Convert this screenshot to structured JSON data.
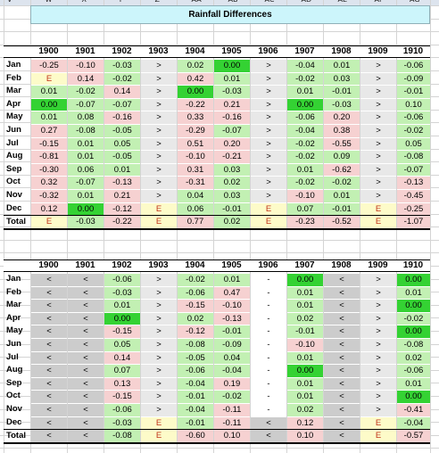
{
  "column_letters": [
    "V",
    "W",
    "X",
    "Y",
    "Z",
    "AA",
    "AB",
    "AC",
    "AD",
    "AE",
    "AF",
    "AG"
  ],
  "title": "Rainfall Differences",
  "years": [
    "1900",
    "1901",
    "1902",
    "1903",
    "1904",
    "1905",
    "1906",
    "1907",
    "1908",
    "1909",
    "1910"
  ],
  "months": [
    "Jan",
    "Feb",
    "Mar",
    "Apr",
    "May",
    "Jun",
    "Jul",
    "Aug",
    "Sep",
    "Oct",
    "Nov",
    "Dec"
  ],
  "total_label": "Total",
  "legend_colors": {
    "green": "#c2f0b3",
    "pink": "#f6d1d1",
    "bright_green": "#34d233",
    "yellow": "#fdfbc9",
    "gray": "#cccccc",
    "light_gray": "#e8e8e8"
  },
  "table1": {
    "rows": [
      [
        [
          "-0.25",
          "p"
        ],
        [
          "-0.10",
          "p"
        ],
        [
          "-0.03",
          "g"
        ],
        [
          ">",
          "l"
        ],
        [
          "0.02",
          "g"
        ],
        [
          "0.00",
          "b"
        ],
        [
          ">",
          "l"
        ],
        [
          "-0.04",
          "g"
        ],
        [
          "0.01",
          "g"
        ],
        [
          ">",
          "l"
        ],
        [
          "-0.06",
          "g"
        ]
      ],
      [
        [
          "E",
          "y"
        ],
        [
          "0.14",
          "p"
        ],
        [
          "-0.02",
          "g"
        ],
        [
          ">",
          "l"
        ],
        [
          "0.42",
          "p"
        ],
        [
          "0.01",
          "g"
        ],
        [
          ">",
          "l"
        ],
        [
          "-0.02",
          "g"
        ],
        [
          "0.03",
          "g"
        ],
        [
          ">",
          "l"
        ],
        [
          "-0.09",
          "g"
        ]
      ],
      [
        [
          "0.01",
          "g"
        ],
        [
          "-0.02",
          "g"
        ],
        [
          "0.14",
          "p"
        ],
        [
          ">",
          "l"
        ],
        [
          "0.00",
          "b"
        ],
        [
          "-0.03",
          "g"
        ],
        [
          ">",
          "l"
        ],
        [
          "0.01",
          "g"
        ],
        [
          "-0.01",
          "g"
        ],
        [
          ">",
          "l"
        ],
        [
          "-0.01",
          "g"
        ]
      ],
      [
        [
          "0.00",
          "b"
        ],
        [
          "-0.07",
          "g"
        ],
        [
          "-0.07",
          "g"
        ],
        [
          ">",
          "l"
        ],
        [
          "-0.22",
          "p"
        ],
        [
          "0.21",
          "p"
        ],
        [
          ">",
          "l"
        ],
        [
          "0.00",
          "b"
        ],
        [
          "-0.03",
          "g"
        ],
        [
          ">",
          "l"
        ],
        [
          "0.10",
          "g"
        ]
      ],
      [
        [
          "0.01",
          "g"
        ],
        [
          "0.08",
          "g"
        ],
        [
          "-0.16",
          "p"
        ],
        [
          ">",
          "l"
        ],
        [
          "0.33",
          "p"
        ],
        [
          "-0.16",
          "p"
        ],
        [
          ">",
          "l"
        ],
        [
          "-0.06",
          "g"
        ],
        [
          "0.20",
          "p"
        ],
        [
          ">",
          "l"
        ],
        [
          "-0.06",
          "g"
        ]
      ],
      [
        [
          "0.27",
          "p"
        ],
        [
          "-0.08",
          "g"
        ],
        [
          "-0.05",
          "g"
        ],
        [
          ">",
          "l"
        ],
        [
          "-0.29",
          "p"
        ],
        [
          "-0.07",
          "g"
        ],
        [
          ">",
          "l"
        ],
        [
          "-0.04",
          "g"
        ],
        [
          "0.38",
          "p"
        ],
        [
          ">",
          "l"
        ],
        [
          "-0.02",
          "g"
        ]
      ],
      [
        [
          "-0.15",
          "p"
        ],
        [
          "0.01",
          "g"
        ],
        [
          "0.05",
          "g"
        ],
        [
          ">",
          "l"
        ],
        [
          "0.51",
          "p"
        ],
        [
          "0.20",
          "p"
        ],
        [
          ">",
          "l"
        ],
        [
          "-0.02",
          "g"
        ],
        [
          "-0.55",
          "p"
        ],
        [
          ">",
          "l"
        ],
        [
          "0.05",
          "g"
        ]
      ],
      [
        [
          "-0.81",
          "p"
        ],
        [
          "0.01",
          "g"
        ],
        [
          "-0.05",
          "g"
        ],
        [
          ">",
          "l"
        ],
        [
          "-0.10",
          "p"
        ],
        [
          "-0.21",
          "p"
        ],
        [
          ">",
          "l"
        ],
        [
          "-0.02",
          "g"
        ],
        [
          "0.09",
          "g"
        ],
        [
          ">",
          "l"
        ],
        [
          "-0.08",
          "g"
        ]
      ],
      [
        [
          "-0.30",
          "p"
        ],
        [
          "0.06",
          "g"
        ],
        [
          "0.01",
          "g"
        ],
        [
          ">",
          "l"
        ],
        [
          "0.31",
          "p"
        ],
        [
          "0.03",
          "g"
        ],
        [
          ">",
          "l"
        ],
        [
          "0.01",
          "g"
        ],
        [
          "-0.62",
          "p"
        ],
        [
          ">",
          "l"
        ],
        [
          "-0.07",
          "g"
        ]
      ],
      [
        [
          "0.32",
          "p"
        ],
        [
          "-0.07",
          "g"
        ],
        [
          "-0.13",
          "p"
        ],
        [
          ">",
          "l"
        ],
        [
          "-0.31",
          "p"
        ],
        [
          "0.02",
          "g"
        ],
        [
          ">",
          "l"
        ],
        [
          "-0.02",
          "g"
        ],
        [
          "-0.02",
          "g"
        ],
        [
          ">",
          "l"
        ],
        [
          "-0.13",
          "p"
        ]
      ],
      [
        [
          "-0.32",
          "p"
        ],
        [
          "0.01",
          "g"
        ],
        [
          "0.21",
          "p"
        ],
        [
          ">",
          "l"
        ],
        [
          "0.04",
          "g"
        ],
        [
          "0.03",
          "g"
        ],
        [
          ">",
          "l"
        ],
        [
          "-0.10",
          "p"
        ],
        [
          "0.01",
          "g"
        ],
        [
          ">",
          "l"
        ],
        [
          "-0.45",
          "p"
        ]
      ],
      [
        [
          "0.12",
          "p"
        ],
        [
          "0.00",
          "b"
        ],
        [
          "-0.12",
          "p"
        ],
        [
          "E",
          "y"
        ],
        [
          "0.06",
          "g"
        ],
        [
          "-0.01",
          "g"
        ],
        [
          "E",
          "y"
        ],
        [
          "0.07",
          "g"
        ],
        [
          "-0.01",
          "g"
        ],
        [
          "E",
          "y"
        ],
        [
          "-0.25",
          "p"
        ]
      ]
    ],
    "total": [
      [
        "E",
        "y"
      ],
      [
        "-0.03",
        "g"
      ],
      [
        "-0.22",
        "p"
      ],
      [
        "E",
        "y"
      ],
      [
        "0.77",
        "p"
      ],
      [
        "0.02",
        "g"
      ],
      [
        "E",
        "y"
      ],
      [
        "-0.23",
        "p"
      ],
      [
        "-0.52",
        "p"
      ],
      [
        "E",
        "y"
      ],
      [
        "-1.07",
        "p"
      ]
    ]
  },
  "table2": {
    "rows": [
      [
        [
          "<",
          "s"
        ],
        [
          "<",
          "s"
        ],
        [
          "-0.06",
          "g"
        ],
        [
          ">",
          "l"
        ],
        [
          "-0.02",
          "g"
        ],
        [
          "0.01",
          "g"
        ],
        [
          "-",
          "w"
        ],
        [
          "0.00",
          "b"
        ],
        [
          "<",
          "s"
        ],
        [
          ">",
          "l"
        ],
        [
          "0.00",
          "b"
        ]
      ],
      [
        [
          "<",
          "s"
        ],
        [
          "<",
          "s"
        ],
        [
          "-0.03",
          "g"
        ],
        [
          ">",
          "l"
        ],
        [
          "-0.06",
          "g"
        ],
        [
          "0.47",
          "p"
        ],
        [
          "-",
          "w"
        ],
        [
          "0.01",
          "g"
        ],
        [
          "<",
          "s"
        ],
        [
          ">",
          "l"
        ],
        [
          "0.01",
          "g"
        ]
      ],
      [
        [
          "<",
          "s"
        ],
        [
          "<",
          "s"
        ],
        [
          "0.01",
          "g"
        ],
        [
          ">",
          "l"
        ],
        [
          "-0.15",
          "p"
        ],
        [
          "-0.10",
          "p"
        ],
        [
          "-",
          "w"
        ],
        [
          "0.01",
          "g"
        ],
        [
          "<",
          "s"
        ],
        [
          ">",
          "l"
        ],
        [
          "0.00",
          "b"
        ]
      ],
      [
        [
          "<",
          "s"
        ],
        [
          "<",
          "s"
        ],
        [
          "0.00",
          "b"
        ],
        [
          ">",
          "l"
        ],
        [
          "0.02",
          "g"
        ],
        [
          "-0.13",
          "p"
        ],
        [
          "-",
          "w"
        ],
        [
          "0.02",
          "g"
        ],
        [
          "<",
          "s"
        ],
        [
          ">",
          "l"
        ],
        [
          "-0.02",
          "g"
        ]
      ],
      [
        [
          "<",
          "s"
        ],
        [
          "<",
          "s"
        ],
        [
          "-0.15",
          "p"
        ],
        [
          ">",
          "l"
        ],
        [
          "-0.12",
          "p"
        ],
        [
          "-0.01",
          "g"
        ],
        [
          "-",
          "w"
        ],
        [
          "-0.01",
          "g"
        ],
        [
          "<",
          "s"
        ],
        [
          ">",
          "l"
        ],
        [
          "0.00",
          "b"
        ]
      ],
      [
        [
          "<",
          "s"
        ],
        [
          "<",
          "s"
        ],
        [
          "0.05",
          "g"
        ],
        [
          ">",
          "l"
        ],
        [
          "-0.08",
          "g"
        ],
        [
          "-0.09",
          "g"
        ],
        [
          "-",
          "w"
        ],
        [
          "-0.10",
          "p"
        ],
        [
          "<",
          "s"
        ],
        [
          ">",
          "l"
        ],
        [
          "-0.08",
          "g"
        ]
      ],
      [
        [
          "<",
          "s"
        ],
        [
          "<",
          "s"
        ],
        [
          "0.14",
          "p"
        ],
        [
          ">",
          "l"
        ],
        [
          "-0.05",
          "g"
        ],
        [
          "0.04",
          "g"
        ],
        [
          "-",
          "w"
        ],
        [
          "0.01",
          "g"
        ],
        [
          "<",
          "s"
        ],
        [
          ">",
          "l"
        ],
        [
          "0.02",
          "g"
        ]
      ],
      [
        [
          "<",
          "s"
        ],
        [
          "<",
          "s"
        ],
        [
          "0.07",
          "g"
        ],
        [
          ">",
          "l"
        ],
        [
          "-0.06",
          "g"
        ],
        [
          "-0.04",
          "g"
        ],
        [
          "-",
          "w"
        ],
        [
          "0.00",
          "b"
        ],
        [
          "<",
          "s"
        ],
        [
          ">",
          "l"
        ],
        [
          "-0.06",
          "g"
        ]
      ],
      [
        [
          "<",
          "s"
        ],
        [
          "<",
          "s"
        ],
        [
          "0.13",
          "p"
        ],
        [
          ">",
          "l"
        ],
        [
          "-0.04",
          "g"
        ],
        [
          "0.19",
          "p"
        ],
        [
          "-",
          "w"
        ],
        [
          "0.01",
          "g"
        ],
        [
          "<",
          "s"
        ],
        [
          ">",
          "l"
        ],
        [
          "0.01",
          "g"
        ]
      ],
      [
        [
          "<",
          "s"
        ],
        [
          "<",
          "s"
        ],
        [
          "-0.15",
          "p"
        ],
        [
          ">",
          "l"
        ],
        [
          "-0.01",
          "g"
        ],
        [
          "-0.02",
          "g"
        ],
        [
          "-",
          "w"
        ],
        [
          "0.01",
          "g"
        ],
        [
          "<",
          "s"
        ],
        [
          ">",
          "l"
        ],
        [
          "0.00",
          "b"
        ]
      ],
      [
        [
          "<",
          "s"
        ],
        [
          "<",
          "s"
        ],
        [
          "-0.06",
          "g"
        ],
        [
          ">",
          "l"
        ],
        [
          "-0.04",
          "g"
        ],
        [
          "-0.11",
          "p"
        ],
        [
          "-",
          "w"
        ],
        [
          "0.02",
          "g"
        ],
        [
          "<",
          "s"
        ],
        [
          ">",
          "l"
        ],
        [
          "-0.41",
          "p"
        ]
      ],
      [
        [
          "<",
          "s"
        ],
        [
          "<",
          "s"
        ],
        [
          "-0.03",
          "g"
        ],
        [
          "E",
          "y"
        ],
        [
          "-0.01",
          "g"
        ],
        [
          "-0.11",
          "p"
        ],
        [
          "<",
          "s"
        ],
        [
          "0.12",
          "p"
        ],
        [
          "<",
          "s"
        ],
        [
          "E",
          "y"
        ],
        [
          "-0.04",
          "g"
        ]
      ]
    ],
    "total": [
      [
        "<",
        "s"
      ],
      [
        "<",
        "s"
      ],
      [
        "-0.08",
        "g"
      ],
      [
        "E",
        "y"
      ],
      [
        "-0.60",
        "p"
      ],
      [
        "0.10",
        "p"
      ],
      [
        "<",
        "s"
      ],
      [
        "0.10",
        "p"
      ],
      [
        "<",
        "s"
      ],
      [
        "E",
        "y"
      ],
      [
        "-0.57",
        "p"
      ]
    ]
  }
}
